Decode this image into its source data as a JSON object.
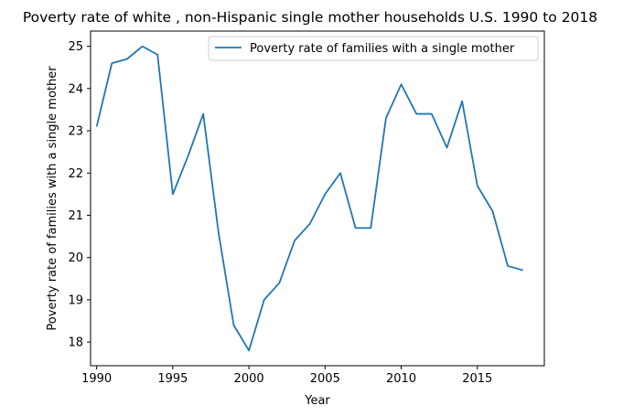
{
  "chart_data": {
    "type": "line",
    "title": "Poverty rate of white , non-Hispanic single mother households U.S. 1990 to 2018",
    "xlabel": "Year",
    "ylabel": "Poverty rate of families with a single mother",
    "x": [
      1990,
      1991,
      1992,
      1993,
      1994,
      1995,
      1996,
      1997,
      1998,
      1999,
      2000,
      2001,
      2002,
      2003,
      2004,
      2005,
      2006,
      2007,
      2008,
      2009,
      2010,
      2011,
      2012,
      2013,
      2014,
      2015,
      2016,
      2017,
      2018
    ],
    "series": [
      {
        "name": "Poverty rate of families with a single mother",
        "color": "#1f77b4",
        "values": [
          23.1,
          24.6,
          24.7,
          25.0,
          24.8,
          21.5,
          22.4,
          23.4,
          20.6,
          18.4,
          17.8,
          19.0,
          19.4,
          20.4,
          20.8,
          21.5,
          22.0,
          20.7,
          20.7,
          23.3,
          24.1,
          23.4,
          23.4,
          22.6,
          23.7,
          21.7,
          21.1,
          19.8,
          19.7
        ]
      }
    ],
    "xlim": [
      1989.6,
      2019.4
    ],
    "ylim": [
      17.44,
      25.36
    ],
    "xticks": [
      1990,
      1995,
      2000,
      2005,
      2010,
      2015
    ],
    "yticks": [
      18,
      19,
      20,
      21,
      22,
      23,
      24,
      25
    ],
    "grid": false,
    "legend_position": "upper-right"
  }
}
